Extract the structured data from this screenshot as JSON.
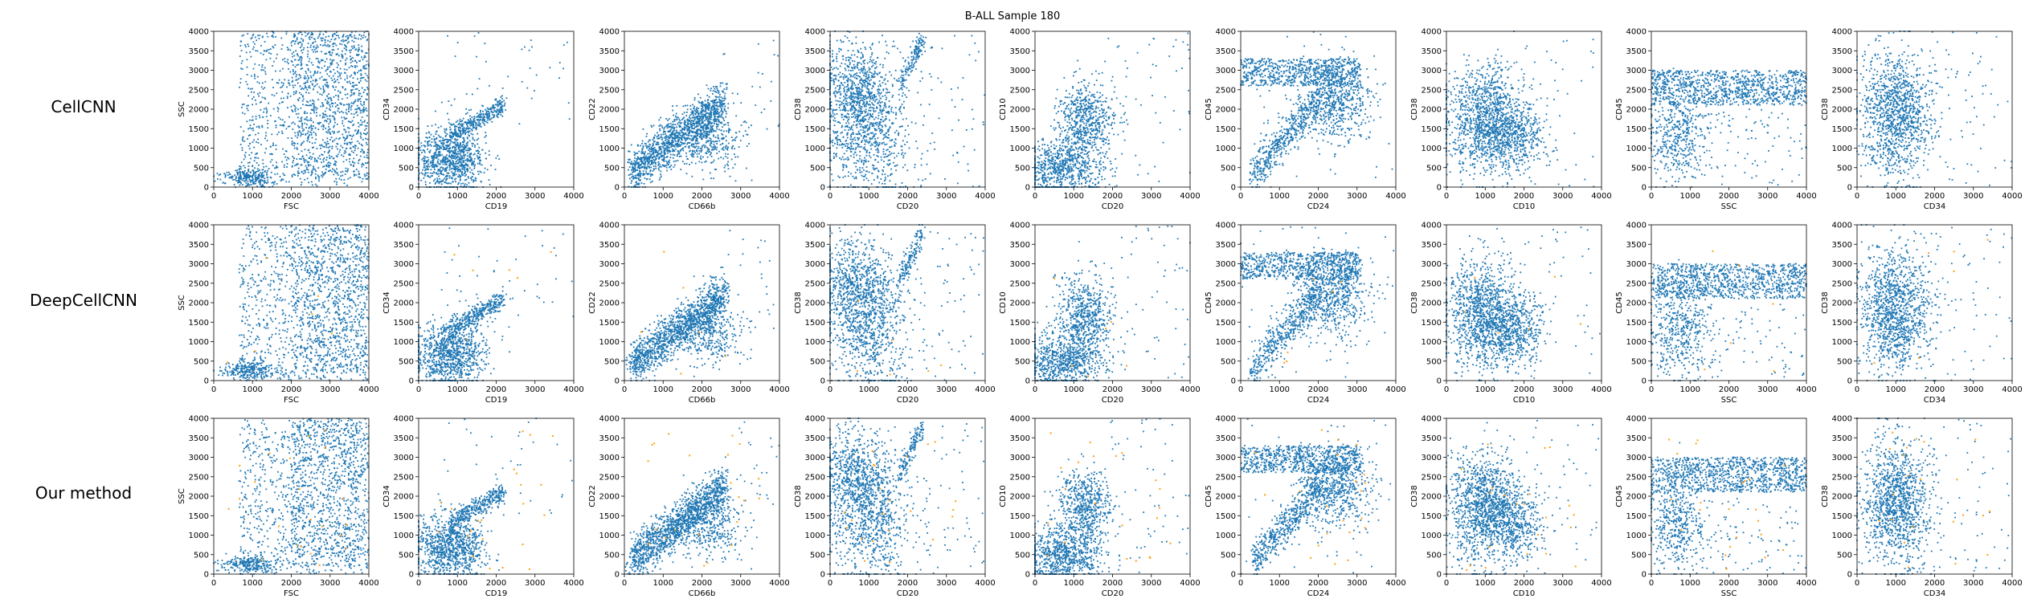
{
  "figure": {
    "title": "B-ALL Sample 180",
    "row_labels": [
      "CellCNN",
      "DeepCellCNN",
      "Our method"
    ],
    "colors": {
      "blue": "#1f77b4",
      "orange": "#ff9f0e",
      "axis": "#000000"
    }
  },
  "chart_data": {
    "type": "scatter",
    "title": "B-ALL Sample 180",
    "grid": false,
    "series_colors": [
      "#1f77b4",
      "#ff9f0e"
    ],
    "xlim": [
      0,
      4000
    ],
    "ylim": [
      0,
      4000
    ],
    "xticks": [
      "0",
      "1000",
      "2000",
      "3000",
      "4000"
    ],
    "yticks": [
      "0",
      "500",
      "1000",
      "1500",
      "2000",
      "2500",
      "3000",
      "3500",
      "4000"
    ],
    "panels": [
      {
        "xlabel": "FSC",
        "ylabel": "SSC"
      },
      {
        "xlabel": "CD19",
        "ylabel": "CD34"
      },
      {
        "xlabel": "CD66b",
        "ylabel": "CD22"
      },
      {
        "xlabel": "CD20",
        "ylabel": "CD38"
      },
      {
        "xlabel": "CD20",
        "ylabel": "CD10"
      },
      {
        "xlabel": "CD24",
        "ylabel": "CD45"
      },
      {
        "xlabel": "CD10",
        "ylabel": "CD38"
      },
      {
        "xlabel": "SSC",
        "ylabel": "CD45"
      },
      {
        "xlabel": "CD34",
        "ylabel": "CD38"
      }
    ]
  }
}
